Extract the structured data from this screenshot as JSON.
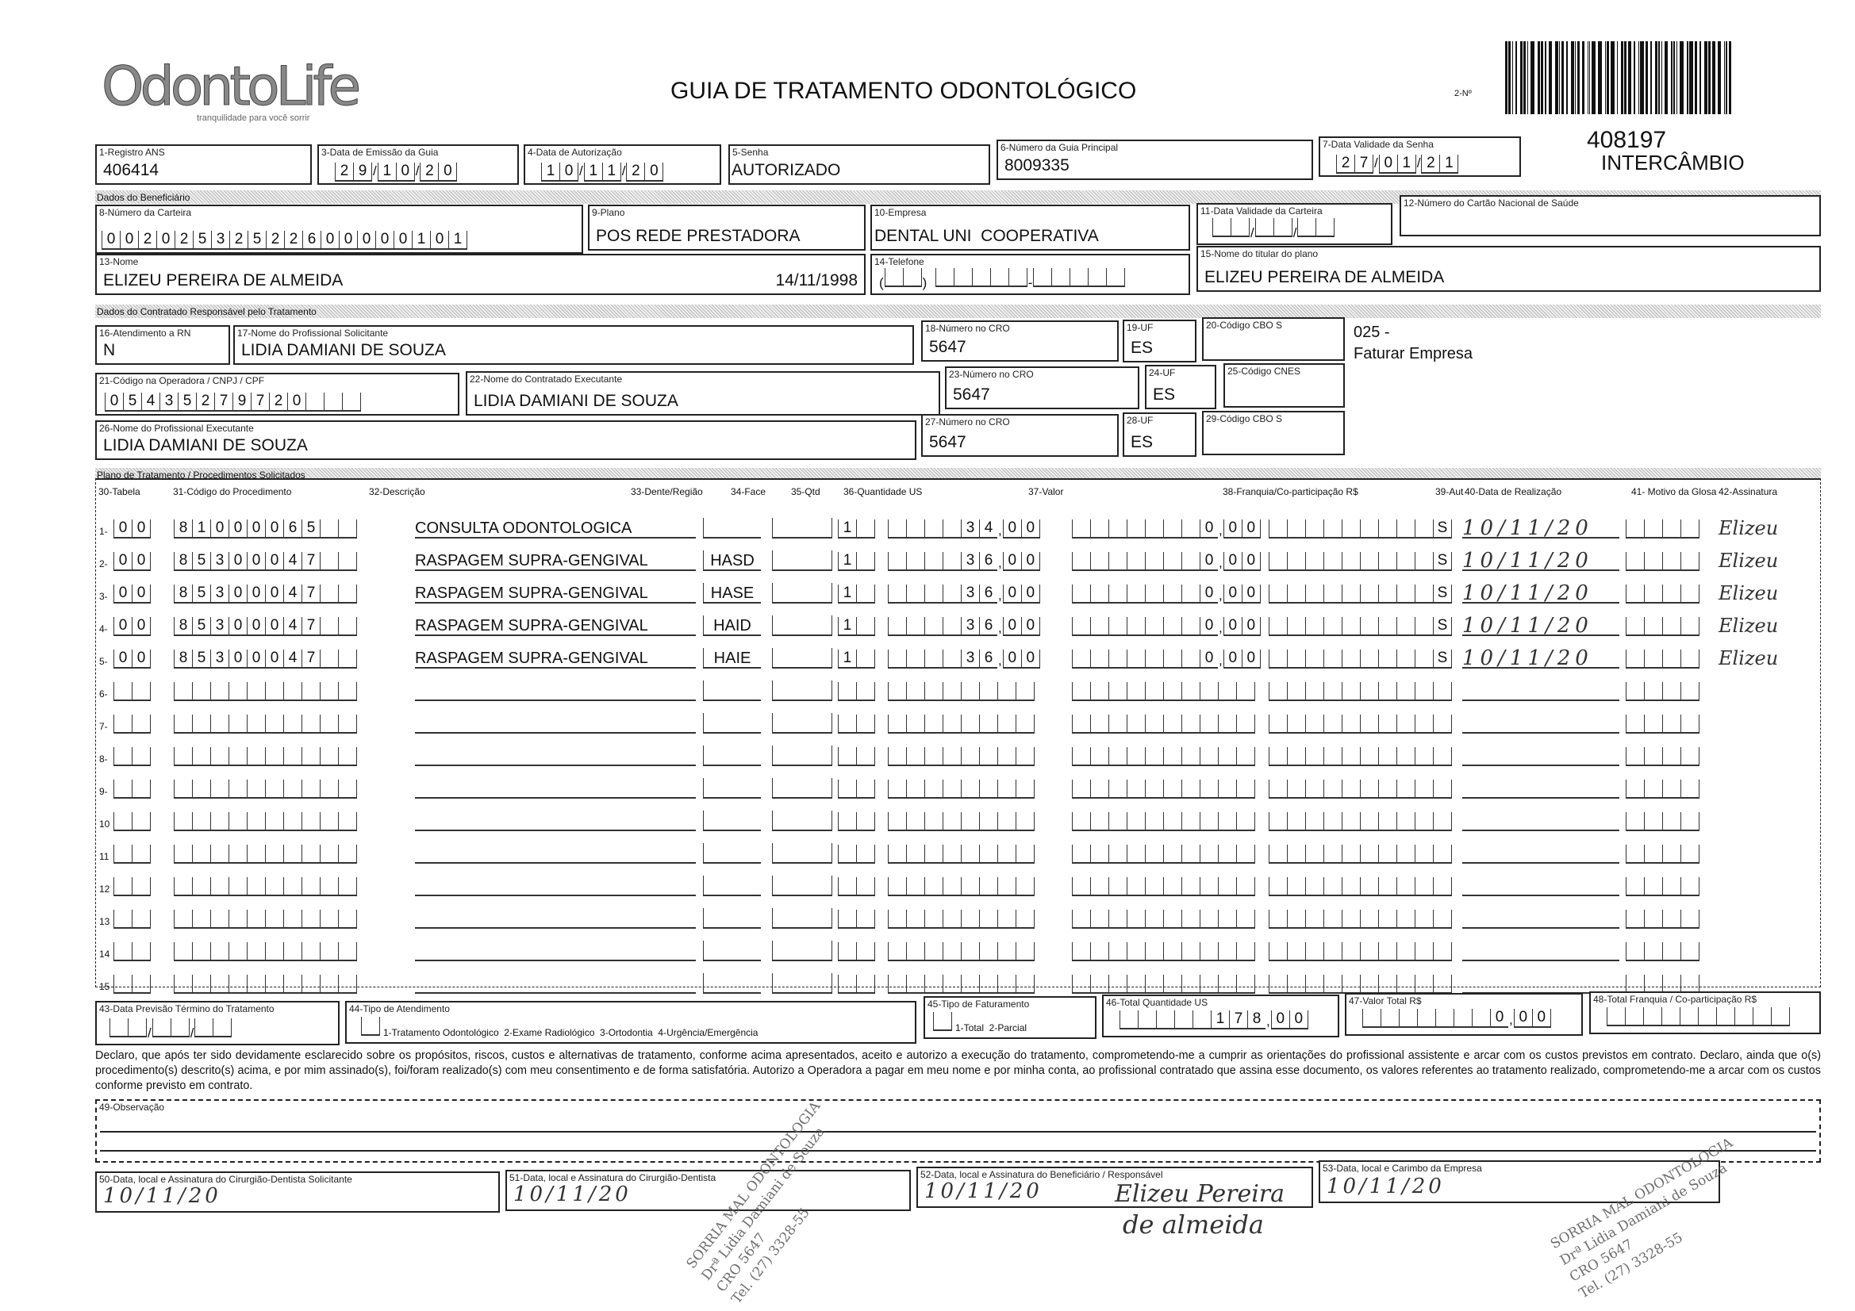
{
  "header": {
    "logo_text": "OdontoLife",
    "logo_tagline": "tranquilidade para você sorrir",
    "title": "GUIA DE TRATAMENTO ODONTOLÓGICO",
    "guide_number_label": "2-Nº",
    "guide_number": "408197",
    "guide_type": "INTERCÂMBIO"
  },
  "top": {
    "registro_ans": {
      "label": "1-Registro ANS",
      "value": "406414"
    },
    "data_emissao": {
      "label": "3-Data de Emissão da Guia",
      "day": "29",
      "month": "10",
      "year": "20"
    },
    "data_autorizacao": {
      "label": "4-Data de Autorização",
      "day": "10",
      "month": "11",
      "year": "20"
    },
    "senha": {
      "label": "5-Senha",
      "value": "AUTORIZADO"
    },
    "guia_principal": {
      "label": "6-Número da Guia Principal",
      "value": "8009335"
    },
    "validade_senha": {
      "label": "7-Data Validade da Senha",
      "day": "27",
      "month": "01",
      "year": "21"
    }
  },
  "beneficiario": {
    "section": "Dados do Beneficiário",
    "carteira": {
      "label": "8-Número da Carteira",
      "value": "00202532522600000101"
    },
    "plano": {
      "label": "9-Plano",
      "value": "POS REDE PRESTADORA"
    },
    "empresa": {
      "label": "10-Empresa",
      "value": "DENTAL UNI  COOPERATIVA"
    },
    "validade_carteira": {
      "label": "11-Data Validade da Carteira",
      "value": ""
    },
    "cns": {
      "label": "12-Número do Cartão Nacional de Saúde",
      "value": ""
    },
    "nome": {
      "label": "13-Nome",
      "value": "ELIZEU PEREIRA DE ALMEIDA",
      "birth": "14/11/1998"
    },
    "telefone": {
      "label": "14-Telefone",
      "value": ""
    },
    "titular": {
      "label": "15-Nome do titular do plano",
      "value": "ELIZEU PEREIRA DE ALMEIDA"
    }
  },
  "contratado": {
    "section": "Dados do Contratado Responsável pelo Tratamento",
    "rn": {
      "label": "16-Atendimento a RN",
      "value": "N"
    },
    "solicitante": {
      "label": "17-Nome do Profissional Solicitante",
      "value": "LIDIA DAMIANI DE SOUZA"
    },
    "cro18": {
      "label": "18-Número no CRO",
      "value": "5647"
    },
    "uf19": {
      "label": "19-UF",
      "value": "ES"
    },
    "cbo20": {
      "label": "20-Código CBO S",
      "value": ""
    },
    "note_code": "025 -",
    "note_text": "Faturar Empresa",
    "codigo_operadora": {
      "label": "21-Código na Operadora / CNPJ / CPF",
      "value": "05435279720"
    },
    "contratado_exec": {
      "label": "22-Nome do Contratado Executante",
      "value": "LIDIA DAMIANI DE SOUZA"
    },
    "cro23": {
      "label": "23-Número no CRO",
      "value": "5647"
    },
    "uf24": {
      "label": "24-UF",
      "value": "ES"
    },
    "cnes": {
      "label": "25-Código CNES",
      "value": ""
    },
    "executante": {
      "label": "26-Nome do Profissional Executante",
      "value": "LIDIA DAMIANI DE SOUZA"
    },
    "cro27": {
      "label": "27-Número no CRO",
      "value": "5647"
    },
    "uf28": {
      "label": "28-UF",
      "value": "ES"
    },
    "cbo29": {
      "label": "29-Código CBO S",
      "value": ""
    }
  },
  "procedimentos": {
    "section": "Plano de Tratamento / Procedimentos Solicitados",
    "columns": [
      "30-Tabela",
      "31-Código do Procedimento",
      "32-Descrição",
      "33-Dente/Região",
      "34-Face",
      "35-Qtd",
      "36-Quantidade US",
      "37-Valor",
      "38-Franquia/Co-participação R$",
      "39-Aut",
      "40-Data de Realização",
      "41- Motivo da Glosa",
      "42-Assinatura"
    ],
    "rows": [
      {
        "n": "1-",
        "tabela": "00",
        "codigo": "81000065",
        "descricao": "CONSULTA ODONTOLOGICA",
        "dente": "",
        "face": "",
        "qtd": "1",
        "qtd_us": "34,00",
        "valor": "0,00",
        "franquia": "",
        "aut": "S",
        "data": "10/11/20",
        "glosa": "",
        "assinatura": "Elizeu"
      },
      {
        "n": "2-",
        "tabela": "00",
        "codigo": "85300047",
        "descricao": "RASPAGEM SUPRA-GENGIVAL",
        "dente": "HASD",
        "face": "",
        "qtd": "1",
        "qtd_us": "36,00",
        "valor": "0,00",
        "franquia": "",
        "aut": "S",
        "data": "10/11/20",
        "glosa": "",
        "assinatura": "Elizeu"
      },
      {
        "n": "3-",
        "tabela": "00",
        "codigo": "85300047",
        "descricao": "RASPAGEM SUPRA-GENGIVAL",
        "dente": "HASE",
        "face": "",
        "qtd": "1",
        "qtd_us": "36,00",
        "valor": "0,00",
        "franquia": "",
        "aut": "S",
        "data": "10/11/20",
        "glosa": "",
        "assinatura": "Elizeu"
      },
      {
        "n": "4-",
        "tabela": "00",
        "codigo": "85300047",
        "descricao": "RASPAGEM SUPRA-GENGIVAL",
        "dente": "HAID",
        "face": "",
        "qtd": "1",
        "qtd_us": "36,00",
        "valor": "0,00",
        "franquia": "",
        "aut": "S",
        "data": "10/11/20",
        "glosa": "",
        "assinatura": "Elizeu"
      },
      {
        "n": "5-",
        "tabela": "00",
        "codigo": "85300047",
        "descricao": "RASPAGEM SUPRA-GENGIVAL",
        "dente": "HAIE",
        "face": "",
        "qtd": "1",
        "qtd_us": "36,00",
        "valor": "0,00",
        "franquia": "",
        "aut": "S",
        "data": "10/11/20",
        "glosa": "",
        "assinatura": "Elizeu"
      },
      {
        "n": "6-"
      },
      {
        "n": "7-"
      },
      {
        "n": "8-"
      },
      {
        "n": "9-"
      },
      {
        "n": "10"
      },
      {
        "n": "11"
      },
      {
        "n": "12"
      },
      {
        "n": "13"
      },
      {
        "n": "14"
      },
      {
        "n": "15"
      }
    ]
  },
  "totais": {
    "previsao": {
      "label": "43-Data Previsão Término do Tratamento",
      "value": ""
    },
    "tipo_atendimento": {
      "label": "44-Tipo de Atendimento",
      "options": "1-Tratamento Odontológico  2-Exame Radiológico  3-Ortodontia  4-Urgência/Emergência"
    },
    "tipo_faturamento": {
      "label": "45-Tipo de Faturamento",
      "options": "1-Total  2-Parcial"
    },
    "total_us": {
      "label": "46-Total Quantidade US",
      "value": "178,00"
    },
    "valor_total": {
      "label": "47-Valor Total R$",
      "value": "0,00"
    },
    "total_franquia": {
      "label": "48-Total Franquia / Co-participação R$",
      "value": ""
    }
  },
  "declaracao": "Declaro, que após ter sido devidamente esclarecido sobre os propósitos, riscos, custos e alternativas de tratamento, conforme acima apresentados, aceito e autorizo a execução do tratamento, comprometendo-me a cumprir as orientações do profissional assistente e arcar com os custos previstos em contrato. Declaro, ainda que o(s) procedimento(s) descrito(s) acima, e por mim assinado(s), foi/foram realizado(s) com meu consentimento e de forma satisfatória. Autorizo a Operadora a pagar em meu nome e por minha conta, ao profissional contratado que assina esse documento, os valores referentes ao tratamento realizado, comprometendo-me a arcar com os custos conforme previsto em contrato.",
  "observacao": {
    "label": "49-Observação",
    "value": ""
  },
  "assinaturas": {
    "s50": {
      "label": "50-Data, local e Assinatura do Cirurgião-Dentista Solicitante",
      "date": "10/11/20"
    },
    "s51": {
      "label": "51-Data, local e Assinatura do Cirurgião-Dentista",
      "date": "10/11/20"
    },
    "s52": {
      "label": "52-Data, local e Assinatura do Beneficiário / Responsável",
      "date": "10/11/20",
      "signature_1": "Elizeu Pereira",
      "signature_2": "de almeida"
    },
    "s53": {
      "label": "53-Data, local e Carimbo da Empresa",
      "date": "10/11/20"
    }
  },
  "stamp": {
    "line1": "SORRIA MAL ODONTOLOGIA",
    "line2": "Drª Lidia Damiani de Souza",
    "line3": "CRO 5647",
    "line4": "Tel. (27) 3328-55"
  }
}
